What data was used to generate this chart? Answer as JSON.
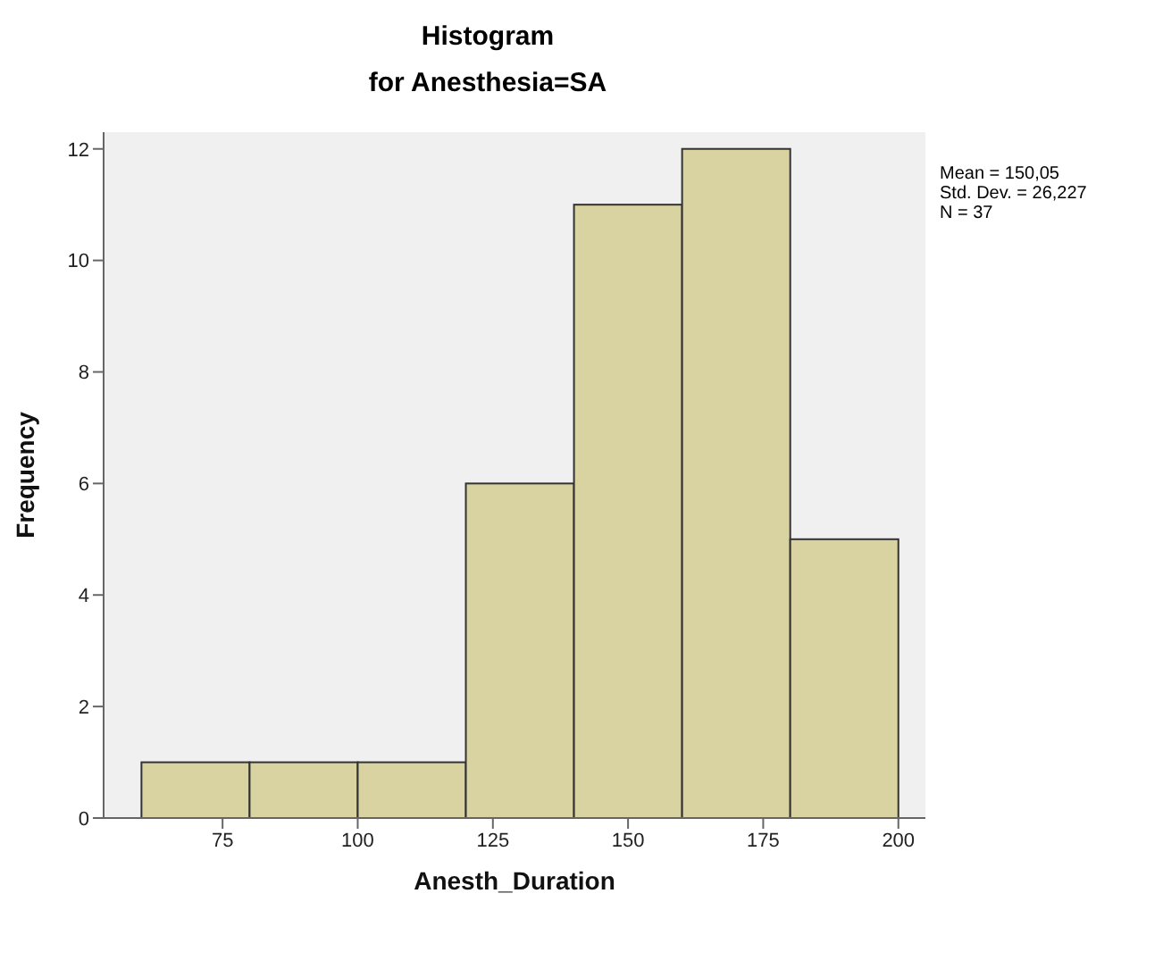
{
  "chart_data": {
    "type": "histogram",
    "title": "Histogram",
    "subtitle": "for Anesthesia=SA",
    "xlabel": "Anesth_Duration",
    "ylabel": "Frequency",
    "bins": [
      60,
      80,
      100,
      120,
      140,
      160,
      180,
      200
    ],
    "values": [
      1,
      1,
      1,
      6,
      11,
      12,
      5
    ],
    "color": "#d8d3a1",
    "xlim": [
      53,
      205
    ],
    "xticks": [
      75,
      100,
      125,
      150,
      175,
      200
    ],
    "ylim": [
      0,
      12.3
    ],
    "yticks": [
      0,
      2,
      4,
      6,
      8,
      10,
      12
    ],
    "annotations": [
      "Mean = 150,05",
      "Std. Dev. = 26,227",
      "N = 37"
    ]
  }
}
